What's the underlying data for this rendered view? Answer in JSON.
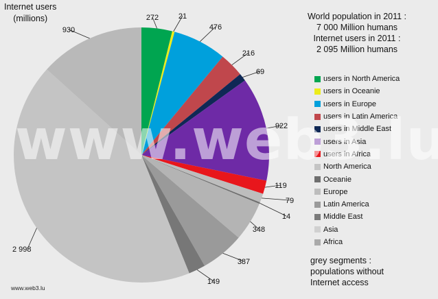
{
  "watermark_text": "www.web3.lu",
  "source": "www.web3.lu",
  "info": {
    "line1": "World population in 2011 :",
    "line2": "7 000 Million humans",
    "line3": "Internet users in 2011 :",
    "line4": "2 095 Million humans"
  },
  "note": "grey segments :\npopulations without\nInternet access",
  "chart_data": {
    "type": "pie",
    "ylabel": "Internet users\n(millions)",
    "start_angle_deg": 0,
    "direction": "clockwise",
    "slices": [
      {
        "label": "users in North America",
        "value": 272,
        "value_label": "272",
        "color": "#00a550",
        "legend": true
      },
      {
        "label": "users in Oceanie",
        "value": 21,
        "value_label": "21",
        "color": "#ecec1a",
        "legend": true
      },
      {
        "label": "users in Europe",
        "value": 476,
        "value_label": "476",
        "color": "#00a0dc",
        "legend": true
      },
      {
        "label": "users in Latin America",
        "value": 216,
        "value_label": "216",
        "color": "#c0474c",
        "legend": true
      },
      {
        "label": "users in Middle East",
        "value": 69,
        "value_label": "69",
        "color": "#0f2855",
        "legend": true
      },
      {
        "label": "users in Asia",
        "value": 922,
        "value_label": "922",
        "color": "#6e2aa6",
        "legend": true
      },
      {
        "label": "users in Africa",
        "value": 119,
        "value_label": "119",
        "color": "#e8161c",
        "legend": true
      },
      {
        "label": "Africa",
        "value": 79,
        "value_label": "79",
        "color": "#bdbdbd",
        "legend": false
      },
      {
        "label": "Middle East",
        "value": 14,
        "value_label": "14",
        "color": "#6e6e6e",
        "legend": false
      },
      {
        "label": "Latin America",
        "value": 348,
        "value_label": "348",
        "color": "#b4b4b4",
        "legend": false
      },
      {
        "label": "Europe",
        "value": 387,
        "value_label": "387",
        "color": "#9a9a9a",
        "legend": false
      },
      {
        "label": "Oceanie",
        "value": 149,
        "value_label": "149",
        "color": "#777777",
        "legend": false
      },
      {
        "label": "Asia",
        "value": 2998,
        "value_label": "2 998",
        "color": "#c4c4c4",
        "legend": false
      },
      {
        "label": "North America",
        "value": 930,
        "value_label": "930",
        "color": "#b9b9b9",
        "legend": false
      }
    ],
    "legend": [
      {
        "label": "users in North America",
        "color": "#00a550"
      },
      {
        "label": "users in Oceanie",
        "color": "#ecec1a"
      },
      {
        "label": "users in Europe",
        "color": "#00a0dc"
      },
      {
        "label": "users in Latin America",
        "color": "#c0474c"
      },
      {
        "label": "users in Middle East",
        "color": "#0f2855"
      },
      {
        "label": "users in Asia",
        "color": "#6e2aa6"
      },
      {
        "label": "users in Africa",
        "color": "#e8161c"
      },
      {
        "label": "North America",
        "color": "#c4c4c4"
      },
      {
        "label": "Oceanie",
        "color": "#6e6e6e"
      },
      {
        "label": "Europe",
        "color": "#bdbdbd"
      },
      {
        "label": "Latin America",
        "color": "#9a9a9a"
      },
      {
        "label": "Middle East",
        "color": "#7a7a7a"
      },
      {
        "label": "Asia",
        "color": "#d0d0d0"
      },
      {
        "label": "Africa",
        "color": "#aaaaaa"
      }
    ],
    "legend_position": "right"
  }
}
